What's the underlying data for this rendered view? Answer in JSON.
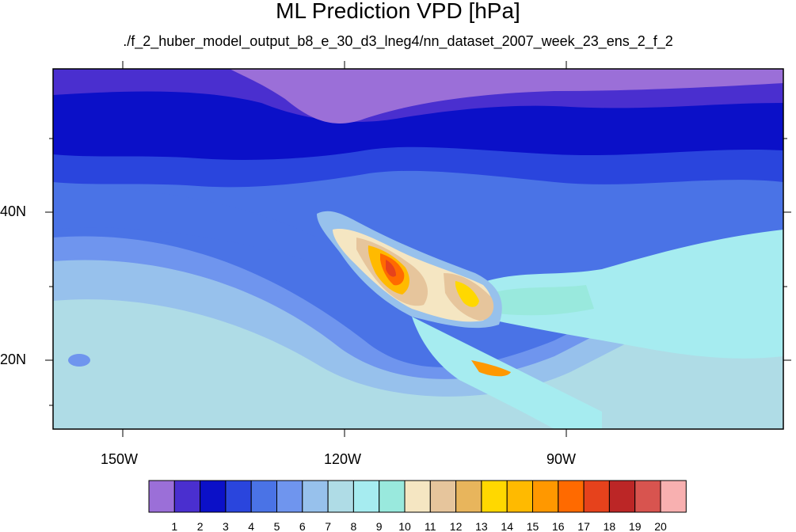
{
  "title": "ML Prediction VPD [hPa]",
  "subtitle": "./f_2_huber_model_output_b8_e_30_d3_lneg4/nn_dataset_2007_week_23_ens_2_f_2",
  "map": {
    "projection": "cylindrical-equidistant",
    "region": "North Pacific / North America",
    "lon_labels": [
      "150W",
      "120W",
      "90W"
    ],
    "lat_labels": [
      "40N",
      "20N"
    ]
  },
  "legend": {
    "labels": [
      "1",
      "2",
      "3",
      "4",
      "5",
      "6",
      "7",
      "8",
      "9",
      "10",
      "11",
      "12",
      "13",
      "14",
      "15",
      "16",
      "17",
      "18",
      "19",
      "20"
    ],
    "colors": [
      "#9b6fd8",
      "#4a2fcf",
      "#0b10c8",
      "#2a45dd",
      "#4a73e6",
      "#6f95ee",
      "#97c1ec",
      "#afdce6",
      "#a6ecf0",
      "#99e9dd",
      "#f5e6c2",
      "#e6c59c",
      "#e8b55c",
      "#ffd800",
      "#ffba00",
      "#ff9800",
      "#ff6a00",
      "#e6421c",
      "#bc2626",
      "#d8544f",
      "#f8b0b0"
    ]
  }
}
